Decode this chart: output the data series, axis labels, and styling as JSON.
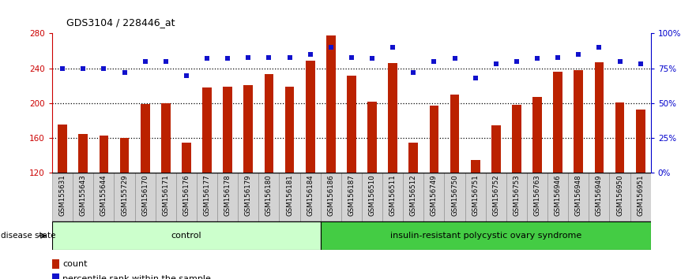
{
  "title": "GDS3104 / 228446_at",
  "categories": [
    "GSM155631",
    "GSM155643",
    "GSM155644",
    "GSM155729",
    "GSM156170",
    "GSM156171",
    "GSM156176",
    "GSM156177",
    "GSM156178",
    "GSM156179",
    "GSM156180",
    "GSM156181",
    "GSM156184",
    "GSM156186",
    "GSM156187",
    "GSM156510",
    "GSM156511",
    "GSM156512",
    "GSM156749",
    "GSM156750",
    "GSM156751",
    "GSM156752",
    "GSM156753",
    "GSM156763",
    "GSM156946",
    "GSM156948",
    "GSM156949",
    "GSM156950",
    "GSM156951"
  ],
  "bar_values": [
    176,
    165,
    163,
    160,
    199,
    200,
    155,
    218,
    219,
    221,
    233,
    219,
    249,
    278,
    232,
    202,
    246,
    155,
    197,
    210,
    135,
    175,
    198,
    207,
    236,
    238,
    247,
    201,
    193
  ],
  "percentile_values": [
    75,
    75,
    75,
    72,
    80,
    80,
    70,
    82,
    82,
    83,
    83,
    83,
    85,
    90,
    83,
    82,
    90,
    72,
    80,
    82,
    68,
    78,
    80,
    82,
    83,
    85,
    90,
    80,
    78
  ],
  "control_count": 13,
  "bar_color": "#bb2200",
  "dot_color": "#1111cc",
  "ylim_left": [
    120,
    280
  ],
  "ylim_right": [
    0,
    100
  ],
  "yticks_left": [
    120,
    160,
    200,
    240,
    280
  ],
  "yticks_right": [
    0,
    25,
    50,
    75,
    100
  ],
  "ytick_labels_right": [
    "0%",
    "25%",
    "50%",
    "75%",
    "100%"
  ],
  "hlines": [
    160,
    200,
    240
  ],
  "group_labels": [
    "control",
    "insulin-resistant polycystic ovary syndrome"
  ],
  "group_colors": [
    "#ccffcc",
    "#44cc44"
  ],
  "legend_items": [
    "count",
    "percentile rank within the sample"
  ],
  "legend_colors": [
    "#bb2200",
    "#1111cc"
  ],
  "disease_state_label": "disease state"
}
